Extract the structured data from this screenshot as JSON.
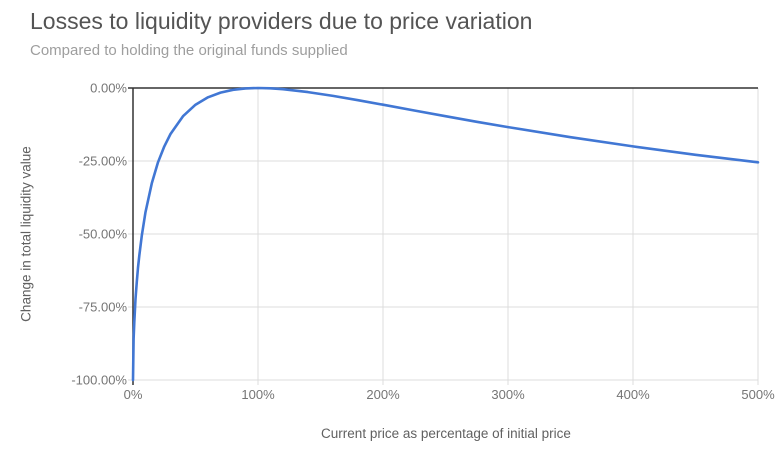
{
  "chart_data": {
    "type": "line",
    "title": "Losses to liquidity providers due to price variation",
    "subtitle": "Compared to holding the original funds supplied",
    "xlabel": "Current price as percentage of initial price",
    "ylabel": "Change in total liquidity value",
    "xlim": [
      0,
      500
    ],
    "ylim": [
      -100,
      0
    ],
    "grid": true,
    "legend": "none",
    "x_ticks": {
      "values": [
        0,
        100,
        200,
        300,
        400,
        500
      ],
      "labels": [
        "0%",
        "100%",
        "200%",
        "300%",
        "400%",
        "500%"
      ]
    },
    "y_ticks": {
      "values": [
        0,
        -25,
        -50,
        -75,
        -100
      ],
      "labels": [
        "0.00%",
        "-25.00%",
        "-50.00%",
        "-75.00%",
        "-100.00%"
      ]
    },
    "series": [
      {
        "name": "Change in total liquidity value",
        "color": "#4177d4",
        "x": [
          0,
          0.5,
          1,
          2,
          3,
          4,
          5,
          7,
          10,
          15,
          20,
          25,
          30,
          40,
          50,
          60,
          70,
          80,
          90,
          100,
          110,
          120,
          140,
          160,
          180,
          200,
          225,
          250,
          275,
          300,
          350,
          400,
          450,
          500
        ],
        "y": [
          -100,
          -85.93,
          -80.2,
          -72.27,
          -66.37,
          -61.54,
          -57.41,
          -50.55,
          -42.5,
          -32.64,
          -25.46,
          -20,
          -15.74,
          -9.65,
          -5.72,
          -3.18,
          -1.57,
          -0.62,
          -0.14,
          0,
          -0.11,
          -0.41,
          -1.4,
          -2.7,
          -4.17,
          -5.72,
          -7.69,
          -9.65,
          -11.56,
          -13.4,
          -16.85,
          -20,
          -22.86,
          -25.46
        ]
      }
    ],
    "colors": {
      "line": "#4177d4",
      "gridline": "#dcdcdc",
      "axis_line": "#333333",
      "tick_label": "#757575",
      "axis_title": "#616161",
      "title": "#545454",
      "subtitle": "#9e9e9e",
      "background": "#ffffff"
    }
  }
}
